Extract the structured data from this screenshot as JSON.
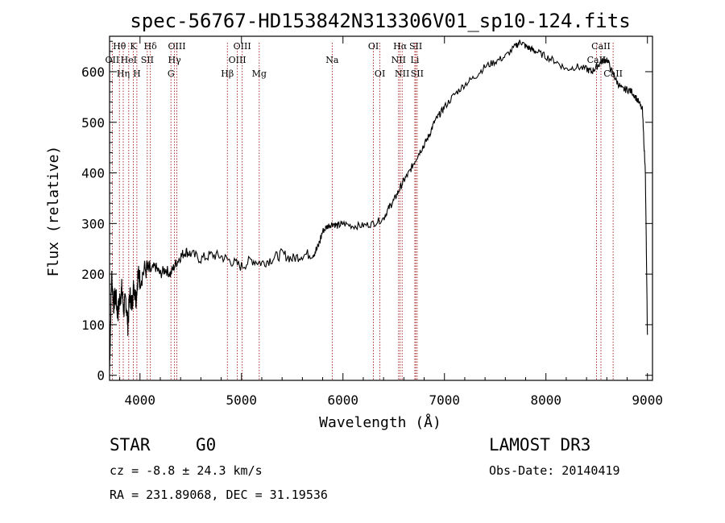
{
  "chart_data": {
    "type": "line",
    "title": "spec-56767-HD153842N313306V01_sp10-124.fits",
    "xlabel": "Wavelength (Å)",
    "ylabel": "Flux (relative)",
    "xlim": [
      3700,
      9050
    ],
    "ylim": [
      -10,
      670
    ],
    "xticks": [
      4000,
      5000,
      6000,
      7000,
      8000,
      9000
    ],
    "yticks": [
      0,
      100,
      200,
      300,
      400,
      500,
      600
    ],
    "series": [
      {
        "name": "spectrum",
        "x": [
          3700,
          3720,
          3740,
          3760,
          3780,
          3800,
          3820,
          3840,
          3860,
          3880,
          3900,
          3920,
          3940,
          3960,
          3980,
          4000,
          4050,
          4100,
          4150,
          4200,
          4250,
          4300,
          4350,
          4400,
          4450,
          4500,
          4600,
          4700,
          4800,
          4900,
          5000,
          5100,
          5200,
          5300,
          5400,
          5500,
          5600,
          5700,
          5750,
          5800,
          5850,
          5900,
          5950,
          6000,
          6100,
          6200,
          6300,
          6400,
          6450,
          6500,
          6550,
          6600,
          6650,
          6700,
          6750,
          6800,
          6850,
          6900,
          6950,
          7000,
          7100,
          7200,
          7300,
          7400,
          7500,
          7600,
          7700,
          7750,
          7800,
          7850,
          7900,
          8000,
          8100,
          8200,
          8300,
          8400,
          8450,
          8500,
          8550,
          8600,
          8650,
          8700,
          8750,
          8800,
          8850,
          8900,
          8950,
          8980,
          9000
        ],
        "y": [
          10,
          200,
          140,
          160,
          120,
          150,
          170,
          130,
          150,
          100,
          160,
          140,
          180,
          150,
          200,
          190,
          210,
          205,
          215,
          200,
          210,
          200,
          220,
          235,
          245,
          240,
          230,
          238,
          235,
          225,
          215,
          228,
          222,
          230,
          240,
          230,
          238,
          240,
          250,
          285,
          295,
          300,
          295,
          300,
          295,
          296,
          300,
          310,
          330,
          345,
          365,
          385,
          400,
          420,
          440,
          455,
          475,
          500,
          515,
          530,
          555,
          575,
          590,
          610,
          620,
          630,
          650,
          660,
          650,
          645,
          640,
          630,
          620,
          605,
          610,
          605,
          600,
          610,
          620,
          625,
          600,
          580,
          565,
          565,
          560,
          545,
          525,
          400,
          80
        ]
      }
    ],
    "emission_lines": [
      {
        "label": "Hθ",
        "row": 1,
        "wavelength": 3797
      },
      {
        "label": "OII",
        "row": 2,
        "wavelength": 3727
      },
      {
        "label": "Hη",
        "row": 3,
        "wavelength": 3835
      },
      {
        "label": "HeI",
        "row": 2,
        "wavelength": 3889
      },
      {
        "label": "K",
        "row": 1,
        "wavelength": 3934
      },
      {
        "label": "H",
        "row": 3,
        "wavelength": 3969
      },
      {
        "label": "SII",
        "row": 2,
        "wavelength": 4072
      },
      {
        "label": "Hδ",
        "row": 1,
        "wavelength": 4102
      },
      {
        "label": "OIII",
        "row": 1,
        "wavelength": 4363
      },
      {
        "label": "Hγ",
        "row": 2,
        "wavelength": 4340
      },
      {
        "label": "G",
        "row": 3,
        "wavelength": 4305
      },
      {
        "label": "Hβ",
        "row": 3,
        "wavelength": 4861
      },
      {
        "label": "OIII",
        "row": 1,
        "wavelength": 5007
      },
      {
        "label": "OIII",
        "row": 2,
        "wavelength": 4959
      },
      {
        "label": "Mg",
        "row": 3,
        "wavelength": 5175
      },
      {
        "label": "Na",
        "row": 2,
        "wavelength": 5894
      },
      {
        "label": "OI",
        "row": 1,
        "wavelength": 6300
      },
      {
        "label": "OI",
        "row": 3,
        "wavelength": 6364
      },
      {
        "label": "Hα",
        "row": 1,
        "wavelength": 6563
      },
      {
        "label": "NII",
        "row": 2,
        "wavelength": 6548
      },
      {
        "label": "NII",
        "row": 3,
        "wavelength": 6583
      },
      {
        "label": "SII",
        "row": 1,
        "wavelength": 6717
      },
      {
        "label": "Li",
        "row": 2,
        "wavelength": 6708
      },
      {
        "label": "SII",
        "row": 3,
        "wavelength": 6731
      },
      {
        "label": "CaII",
        "row": 1,
        "wavelength": 8542
      },
      {
        "label": "CaII",
        "row": 2,
        "wavelength": 8498
      },
      {
        "label": "CaII",
        "row": 3,
        "wavelength": 8662
      }
    ]
  },
  "info": {
    "object_class": "STAR",
    "subclass": "G0",
    "survey": "LAMOST DR3",
    "cz": "cz = -8.8 ± 24.3 km/s",
    "obs_date": "Obs-Date: 20140419",
    "coords": "RA = 231.89068, DEC =  31.19536"
  },
  "colors": {
    "line_marker": "#a01818",
    "spectrum": "#000000"
  }
}
